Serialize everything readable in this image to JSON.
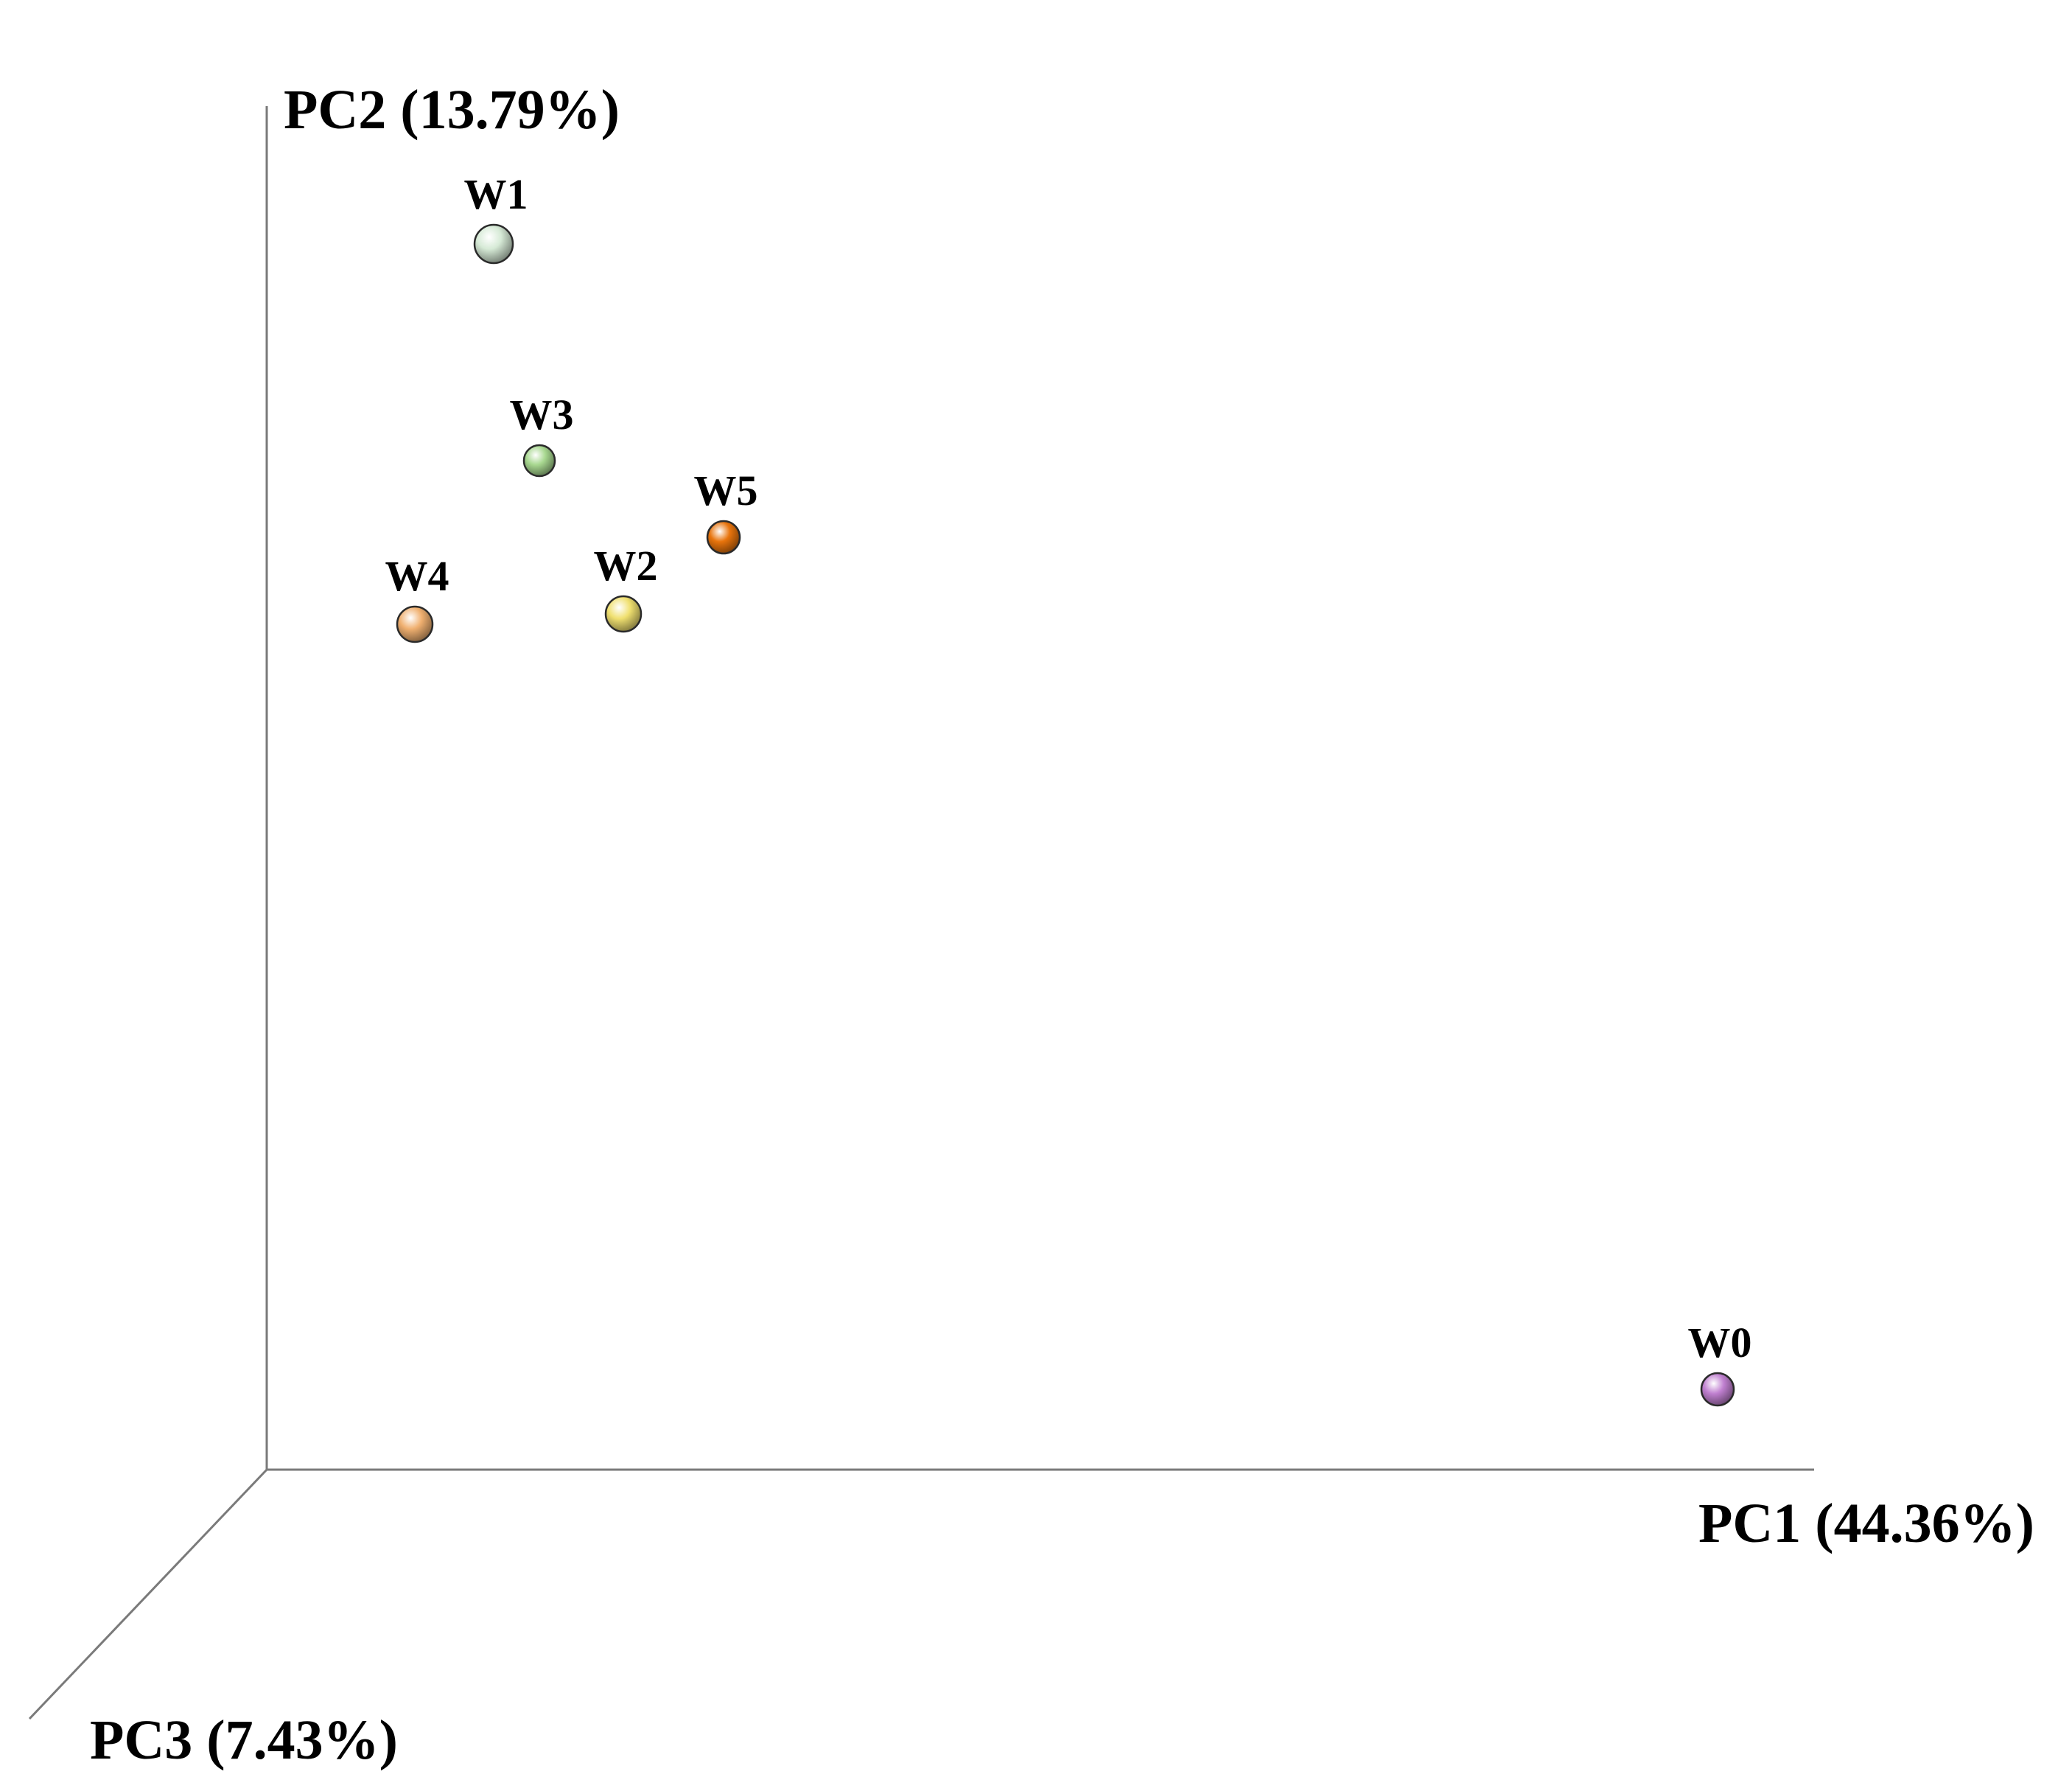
{
  "chart_data": {
    "type": "scatter",
    "projection": "3d",
    "title": "",
    "axes": {
      "x": {
        "label": "PC1 (44.36%)"
      },
      "y": {
        "label": "PC2 (13.79%)"
      },
      "z": {
        "label": "PC3 (7.43%)"
      }
    },
    "grid": false,
    "legend": "none",
    "points": [
      {
        "label": "W1",
        "color": "#d6ead6"
      },
      {
        "label": "W3",
        "color": "#a8d890"
      },
      {
        "label": "W5",
        "color": "#e8740c"
      },
      {
        "label": "W2",
        "color": "#f0e070"
      },
      {
        "label": "W4",
        "color": "#f0b070"
      },
      {
        "label": "W0",
        "color": "#c080d0"
      }
    ]
  }
}
